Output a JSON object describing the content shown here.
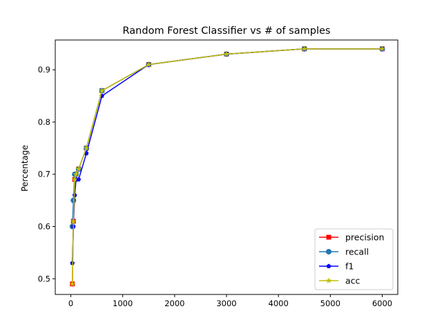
{
  "chart_data": {
    "type": "line",
    "title": "Random Forest Classifier vs # of samples",
    "xlabel": "",
    "ylabel": "Percentage",
    "xlim": [
      -300,
      6300
    ],
    "ylim": [
      0.47,
      0.957
    ],
    "xticks": [
      0,
      1000,
      2000,
      3000,
      4000,
      5000,
      6000
    ],
    "yticks": [
      0.5,
      0.6,
      0.7,
      0.8,
      0.9
    ],
    "grid": false,
    "legend_position": "lower-right",
    "x": [
      30,
      50,
      75,
      100,
      150,
      300,
      600,
      1500,
      3000,
      4500,
      6000
    ],
    "series": [
      {
        "name": "precision",
        "color": "#ff0000",
        "marker": "square",
        "values": [
          0.49,
          0.61,
          0.69,
          0.7,
          0.71,
          0.75,
          0.86,
          0.91,
          0.93,
          0.94,
          0.94
        ]
      },
      {
        "name": "recall",
        "color": "#1f77b4",
        "marker": "circle",
        "values": [
          0.6,
          0.65,
          0.7,
          0.7,
          0.71,
          0.75,
          0.86,
          0.91,
          0.93,
          0.94,
          0.94
        ]
      },
      {
        "name": "f1",
        "color": "#0000ff",
        "marker": "pentagon",
        "values": [
          0.53,
          0.6,
          0.66,
          0.69,
          0.69,
          0.74,
          0.85,
          0.91,
          0.93,
          0.94,
          0.94
        ]
      },
      {
        "name": "acc",
        "color": "#bfbf00",
        "marker": "star",
        "values": [
          0.49,
          0.61,
          0.69,
          0.7,
          0.71,
          0.75,
          0.86,
          0.91,
          0.93,
          0.94,
          0.94
        ]
      }
    ]
  }
}
